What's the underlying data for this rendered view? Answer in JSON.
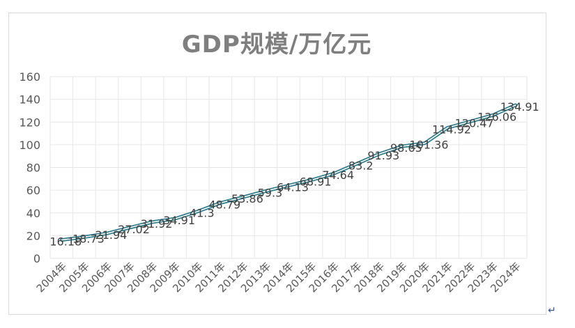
{
  "chart_data": {
    "type": "line",
    "title": "GDP规模/万亿元",
    "xlabel": "",
    "ylabel": "",
    "ylim": [
      0,
      160
    ],
    "yticks": [
      "0",
      "20",
      "40",
      "60",
      "80",
      "100",
      "120",
      "140",
      "160"
    ],
    "categories": [
      "2004年",
      "2005年",
      "2006年",
      "2007年",
      "2008年",
      "2009年",
      "2010年",
      "2011年",
      "2012年",
      "2013年",
      "2014年",
      "2015年",
      "2016年",
      "2017年",
      "2018年",
      "2019年",
      "2020年",
      "2021年",
      "2022年",
      "2023年",
      "2024年"
    ],
    "series": [
      {
        "values": [
          16.18,
          18.73,
          21.94,
          27.02,
          31.92,
          34.91,
          41.3,
          48.79,
          53.86,
          59.3,
          64.13,
          68.91,
          74.64,
          83.2,
          91.93,
          98.65,
          101.36,
          114.92,
          120.47,
          126.06,
          134.91
        ],
        "labels": [
          "16.18",
          "18.73",
          "21.94",
          "27.02",
          "31.92",
          "34.91",
          "41.3",
          "48.79",
          "53.86",
          "59.3",
          "64.13",
          "68.91",
          "74.64",
          "83.2",
          "91.93",
          "98.65",
          "101.36",
          "114.92",
          "120.47",
          "126.06",
          "134.91"
        ],
        "color": "#2e7d8c",
        "line_highlight": "#ffffff"
      }
    ],
    "grid": true,
    "legend": "none"
  },
  "colors": {
    "title": "#7f7f7f",
    "grid": "#e6e6e6",
    "tick_text": "#595959",
    "data_label": "#404040"
  },
  "trailing_mark": "↵"
}
